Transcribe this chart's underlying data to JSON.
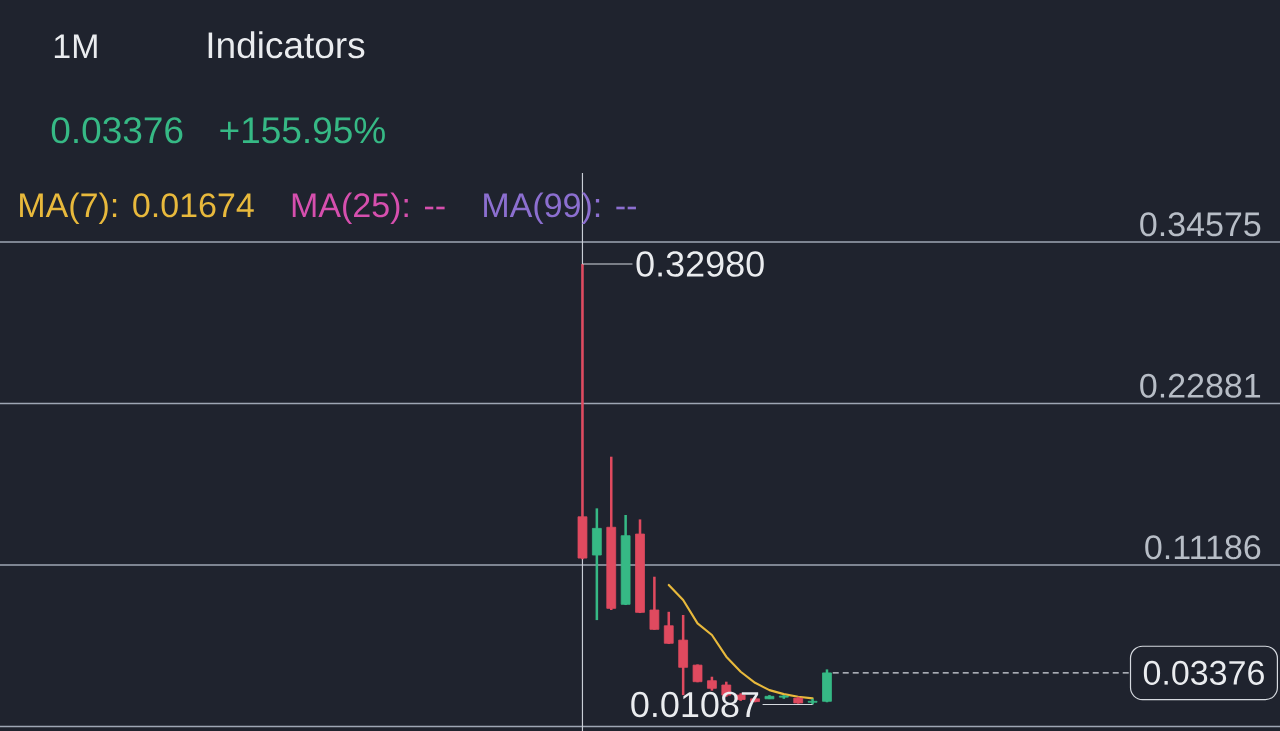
{
  "chart_data": {
    "type": "candlestick",
    "categories": [
      null,
      null,
      null,
      null,
      null,
      null,
      null,
      null,
      null,
      null,
      null,
      null,
      null,
      null,
      null,
      null,
      null,
      null,
      null,
      null,
      null,
      null,
      null,
      null,
      null,
      null,
      null,
      null,
      null,
      null,
      null,
      null,
      null,
      null,
      null,
      null,
      null,
      null,
      null,
      null,
      null,
      null,
      null,
      null,
      null,
      null,
      null,
      null,
      null,
      null,
      null,
      null,
      null,
      null,
      null,
      null,
      null,
      null,
      null,
      null,
      null,
      null,
      null,
      null,
      null,
      null,
      null,
      null,
      null,
      null,
      null,
      null,
      null,
      null,
      null,
      null,
      null,
      null,
      null,
      null,
      null,
      null,
      null,
      null,
      null,
      null,
      null,
      null,
      null
    ],
    "ohlc": [
      null,
      null,
      null,
      null,
      null,
      null,
      null,
      null,
      null,
      null,
      null,
      null,
      null,
      null,
      null,
      null,
      null,
      null,
      null,
      null,
      null,
      null,
      null,
      null,
      null,
      null,
      null,
      null,
      null,
      null,
      null,
      null,
      null,
      null,
      null,
      null,
      null,
      null,
      null,
      null,
      [
        0.1468,
        0.3298,
        0.116,
        0.1169
      ],
      [
        0.1191,
        0.1529,
        0.072,
        0.1384
      ],
      [
        0.1392,
        0.1903,
        0.0793,
        0.0805
      ],
      [
        0.0834,
        0.1481,
        0.0829,
        0.1331
      ],
      [
        0.1343,
        0.1449,
        0.0771,
        0.0776
      ],
      [
        0.0793,
        0.1034,
        0.065,
        0.0653
      ],
      [
        0.0679,
        0.078,
        0.0548,
        0.0552
      ],
      [
        0.0575,
        0.0757,
        0.0177,
        0.0378
      ],
      [
        0.0394,
        0.0399,
        0.027,
        0.0274
      ],
      [
        0.0281,
        0.031,
        0.0209,
        0.0226
      ],
      [
        0.025,
        0.0274,
        0.0165,
        0.0177
      ],
      [
        0.0177,
        0.019,
        0.0135,
        0.0145
      ],
      [
        0.015,
        0.0165,
        0.0125,
        0.013
      ],
      [
        0.015,
        0.0177,
        0.0148,
        0.0168
      ],
      [
        0.0162,
        0.0177,
        0.015,
        0.017
      ],
      [
        0.0155,
        0.0165,
        0.0115,
        0.012
      ],
      [
        0.0125,
        0.015,
        0.01087,
        0.0132
      ],
      [
        0.0132,
        0.0363,
        0.0125,
        0.03376
      ],
      null,
      null,
      null,
      null,
      null,
      null,
      null,
      null,
      null,
      null,
      null,
      null,
      null,
      null,
      null,
      null,
      null,
      null,
      null,
      null,
      null,
      null,
      null,
      null,
      null,
      null,
      null,
      null,
      null,
      null,
      null
    ],
    "colors": [
      null,
      null,
      null,
      null,
      null,
      null,
      null,
      null,
      null,
      null,
      null,
      null,
      null,
      null,
      null,
      null,
      null,
      null,
      null,
      null,
      null,
      null,
      null,
      null,
      null,
      null,
      null,
      null,
      null,
      null,
      null,
      null,
      null,
      null,
      null,
      null,
      null,
      null,
      null,
      null,
      "#e04a5f",
      "#36b985",
      "#e04a5f",
      "#36b985",
      "#e04a5f",
      "#e04a5f",
      "#e04a5f",
      "#e04a5f",
      "#e04a5f",
      "#e04a5f",
      "#e04a5f",
      "#e04a5f",
      "#e04a5f",
      "#36b985",
      "#36b985",
      "#e04a5f",
      "#36b985",
      "#36b985",
      null,
      null,
      null,
      null,
      null,
      null,
      null,
      null,
      null,
      null,
      null,
      null,
      null,
      null,
      null,
      null,
      null,
      null,
      null,
      null,
      null,
      null,
      null,
      null,
      null,
      null,
      null,
      null,
      null,
      null,
      null
    ],
    "series": [
      {
        "type": "line",
        "name": "MA(7): 0.01674",
        "color": "#e8b93c",
        "values": [
          null,
          null,
          null,
          null,
          null,
          null,
          null,
          null,
          null,
          null,
          null,
          null,
          null,
          null,
          null,
          null,
          null,
          null,
          null,
          null,
          null,
          null,
          null,
          null,
          null,
          null,
          null,
          null,
          null,
          null,
          null,
          null,
          null,
          null,
          null,
          null,
          null,
          null,
          null,
          null,
          null,
          null,
          null,
          null,
          null,
          null,
          0.0974,
          0.0865,
          0.0696,
          0.0612,
          0.0455,
          0.0346,
          0.0266,
          0.0213,
          0.0184,
          0.0165,
          0.0153,
          null,
          null,
          null,
          null,
          null,
          null,
          null,
          null,
          null,
          null,
          null,
          null,
          null,
          null,
          null,
          null,
          null,
          null,
          null,
          null,
          null,
          null,
          null,
          null,
          null,
          null,
          null,
          null,
          null,
          null,
          null,
          null
        ]
      },
      {
        "type": "line",
        "name": "MA(25): --",
        "color": "#d64fae",
        "values": [
          null,
          null,
          null,
          null,
          null,
          null,
          null,
          null,
          null,
          null,
          null,
          null,
          null,
          null,
          null,
          null,
          null,
          null,
          null,
          null,
          null,
          null,
          null,
          null,
          null,
          null,
          null,
          null,
          null,
          null,
          null,
          null,
          null,
          null,
          null,
          null,
          null,
          null,
          null,
          null,
          null,
          null,
          null,
          null,
          null,
          null,
          null,
          null,
          null,
          null,
          null,
          null,
          null,
          null,
          null,
          null,
          null,
          null,
          null,
          null,
          null,
          null,
          null,
          null,
          null,
          null,
          null,
          null,
          null,
          null,
          null,
          null,
          null,
          null,
          null,
          null,
          null,
          null,
          null,
          null,
          null,
          null,
          null,
          null,
          null,
          null,
          null,
          null,
          null
        ]
      },
      {
        "type": "line",
        "name": "MA(99): --",
        "color": "#8c6fd0",
        "values": [
          null,
          null,
          null,
          null,
          null,
          null,
          null,
          null,
          null,
          null,
          null,
          null,
          null,
          null,
          null,
          null,
          null,
          null,
          null,
          null,
          null,
          null,
          null,
          null,
          null,
          null,
          null,
          null,
          null,
          null,
          null,
          null,
          null,
          null,
          null,
          null,
          null,
          null,
          null,
          null,
          null,
          null,
          null,
          null,
          null,
          null,
          null,
          null,
          null,
          null,
          null,
          null,
          null,
          null,
          null,
          null,
          null,
          null,
          null,
          null,
          null,
          null,
          null,
          null,
          null,
          null,
          null,
          null,
          null,
          null,
          null,
          null,
          null,
          null,
          null,
          null,
          null,
          null,
          null,
          null,
          null,
          null,
          null,
          null,
          null,
          null,
          null,
          null,
          null
        ]
      }
    ],
    "ylim": [
      -0.0083,
      0.3957
    ],
    "yticks": [
      {
        "value": -0.00509,
        "label": null
      },
      0.11186,
      0.22881,
      0.34575
    ],
    "tick_labels": "y",
    "grid": "y",
    "legend": "top left",
    "ref_lines": [
      {
        "axis": "y",
        "value": 0.03376,
        "label": "0.03376",
        "color": "#d5d9df",
        "line_style": "dashed"
      }
    ],
    "annotations": [
      "1M",
      "Indicators",
      "0.03376",
      "+155.95%",
      "0.32980",
      "0.01087"
    ]
  }
}
